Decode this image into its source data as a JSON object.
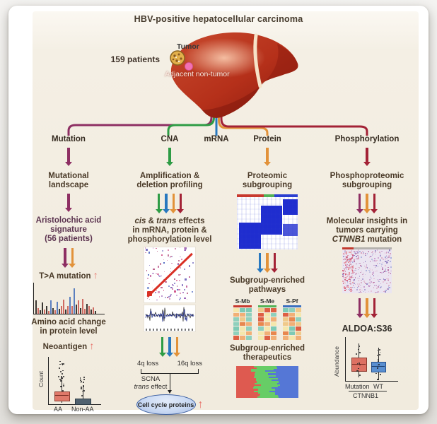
{
  "title": "HBV-positive hepatocellular carcinoma",
  "header": {
    "patients": "159 patients",
    "tumor": "Tumor",
    "adjacent": "Adjacent non-tumor"
  },
  "colors": {
    "mutation": "#8E2F63",
    "cna": "#2E9C45",
    "mrna": "#2878BF",
    "protein": "#E2923A",
    "phosphorylation": "#A32236",
    "up_arrow": "#E8736B",
    "ellipse_fill": "#C9D9F3",
    "text": "#4A3A28"
  },
  "up_arrow": "↑",
  "branches": {
    "mutation": "Mutation",
    "cna": "CNA",
    "mrna": "mRNA",
    "protein": "Protein",
    "phosphorylation": "Phosphorylation"
  },
  "mutation_col": {
    "step1": "Mutational\nlandscape",
    "step2": "Aristolochic acid\nsignature\n(56 patients)",
    "ta": "T>A mutation",
    "amino": "Amino acid change\nin protein level",
    "neoantigen": "Neoantigen",
    "boxplot": {
      "ylabel": "Count",
      "cat1": "AA",
      "cat2": "Non-AA"
    },
    "spectrum_bars": [
      [
        0.5,
        "k"
      ],
      [
        0.2,
        "r"
      ],
      [
        0.12,
        "k"
      ],
      [
        0.42,
        "k"
      ],
      [
        0.15,
        "r"
      ],
      [
        0.3,
        "k"
      ],
      [
        0.1,
        "r"
      ],
      [
        0.5,
        "b"
      ],
      [
        0.2,
        "k"
      ],
      [
        0.12,
        "r"
      ],
      [
        0.45,
        "b"
      ],
      [
        0.18,
        "k"
      ],
      [
        0.3,
        "r"
      ],
      [
        0.52,
        "r"
      ],
      [
        0.15,
        "k"
      ],
      [
        0.28,
        "r"
      ],
      [
        0.62,
        "b"
      ],
      [
        0.3,
        "r"
      ],
      [
        0.95,
        "b"
      ],
      [
        0.35,
        "k"
      ],
      [
        0.5,
        "r"
      ],
      [
        0.22,
        "k"
      ],
      [
        0.55,
        "r"
      ],
      [
        0.18,
        "r"
      ],
      [
        0.38,
        "k"
      ],
      [
        0.3,
        "r"
      ],
      [
        0.15,
        "k"
      ],
      [
        0.25,
        "r"
      ],
      [
        0.1,
        "k"
      ]
    ]
  },
  "cna_col": {
    "step1": "Amplification &\ndeletion profiling",
    "cis": "cis",
    "cis_mid": " & ",
    "trans": "trans",
    "cis_rest": " effects",
    "cis_l2": "in mRNA, protein &",
    "cis_l3": "phosphorylation level",
    "loss1": "4q loss",
    "loss2": "16q loss",
    "scna": "SCNA",
    "trans2": "trans",
    "trans_rest": " effect",
    "ellipse": "Cell cycle proteins"
  },
  "protein_col": {
    "step1": "Proteomic\nsubgrouping",
    "pathways": "Subgroup-enriched\npathways",
    "sub1": "S-Mb",
    "sub2": "S-Me",
    "sub3": "S-Pf",
    "therapeutics": "Subgroup-enriched\ntherapeutics"
  },
  "phospho_col": {
    "step1": "Phosphoproteomic\nsubgrouping",
    "ins_l1": "Molecular insights in",
    "ins_l2": "tumors carrying",
    "ins_gene": "CTNNB1",
    "ins_rest": " mutation",
    "site": "ALDOA:S36",
    "boxplot": {
      "ylabel": "Abundance",
      "cat1": "Mutation",
      "cat2": "WT",
      "group": "CTNNB1"
    }
  }
}
